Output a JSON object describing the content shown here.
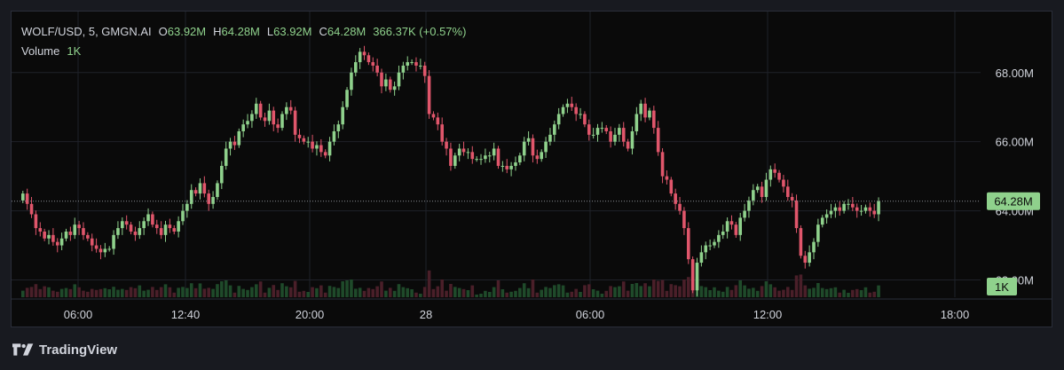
{
  "legend": {
    "symbol": "WOLF/USD, 5, GMGN.AI",
    "open_label": "O",
    "open": "63.92M",
    "high_label": "H",
    "high": "64.28M",
    "low_label": "L",
    "low": "63.92M",
    "close_label": "C",
    "close": "64.28M",
    "change": "366.37K (+0.57%)",
    "volume_label": "Volume",
    "volume_value": "1K"
  },
  "brand": {
    "name": "TradingView"
  },
  "colors": {
    "up": "#8fd18c",
    "down": "#e0566b",
    "grid": "#1f2229",
    "text": "#d1d4dc",
    "bg": "#0a0a0a"
  },
  "chart_data": {
    "type": "candlestick",
    "interval": "5",
    "y_ticks": [
      "62.00M",
      "64.00M",
      "66.00M",
      "68.00M"
    ],
    "x_ticks": [
      "06:00",
      "12:40",
      "20:00",
      "28",
      "06:00",
      "12:00",
      "18:00"
    ],
    "last_price_label": "64.28M",
    "volume_label": "1K",
    "ylim": [
      61.5,
      69.2
    ],
    "grid": true,
    "close_series": [
      64.5,
      64.2,
      63.9,
      63.5,
      63.4,
      63.2,
      63.3,
      63.1,
      63.0,
      63.2,
      63.4,
      63.3,
      63.6,
      63.5,
      63.3,
      63.2,
      63.0,
      62.9,
      62.8,
      62.9,
      62.9,
      63.3,
      63.5,
      63.7,
      63.6,
      63.4,
      63.3,
      63.5,
      63.7,
      63.9,
      63.6,
      63.5,
      63.3,
      63.6,
      63.5,
      63.4,
      63.7,
      64.0,
      64.2,
      64.6,
      64.5,
      64.8,
      64.5,
      64.2,
      64.4,
      64.8,
      65.3,
      65.8,
      66.0,
      65.9,
      66.3,
      66.5,
      66.6,
      66.8,
      67.1,
      66.7,
      66.6,
      66.9,
      66.5,
      66.4,
      66.8,
      67.0,
      66.9,
      66.2,
      66.1,
      66.0,
      66.0,
      65.8,
      65.9,
      65.7,
      65.6,
      66.0,
      66.3,
      66.5,
      67.0,
      67.5,
      68.0,
      68.3,
      68.6,
      68.5,
      68.3,
      68.2,
      68.0,
      67.6,
      67.8,
      67.5,
      67.6,
      68.0,
      68.2,
      68.3,
      68.3,
      68.2,
      68.2,
      67.9,
      66.8,
      66.7,
      66.5,
      66.0,
      65.8,
      65.3,
      65.6,
      65.8,
      65.7,
      65.7,
      65.5,
      65.5,
      65.5,
      65.6,
      65.6,
      65.8,
      65.3,
      65.3,
      65.2,
      65.3,
      65.4,
      65.6,
      66.0,
      66.1,
      65.6,
      65.5,
      65.7,
      66.0,
      66.2,
      66.5,
      66.8,
      67.0,
      67.1,
      67.0,
      66.8,
      66.8,
      66.5,
      66.2,
      66.2,
      66.4,
      66.4,
      66.3,
      66.0,
      66.2,
      66.4,
      66.0,
      65.8,
      66.3,
      66.8,
      67.1,
      66.7,
      66.9,
      66.4,
      65.7,
      65.0,
      64.9,
      64.5,
      64.2,
      64.0,
      63.5,
      62.6,
      61.7,
      62.5,
      62.8,
      63.0,
      63.0,
      63.1,
      63.3,
      63.4,
      63.7,
      63.6,
      63.3,
      63.8,
      64.0,
      64.3,
      64.6,
      64.7,
      64.4,
      64.9,
      65.2,
      65.1,
      64.9,
      64.7,
      64.4,
      64.3,
      63.5,
      62.7,
      62.5,
      62.8,
      63.1,
      63.6,
      63.8,
      63.9,
      64.0,
      64.1,
      64.0,
      64.2,
      64.2,
      64.1,
      64.0,
      64.0,
      64.1,
      64.0,
      63.9,
      64.28
    ]
  }
}
